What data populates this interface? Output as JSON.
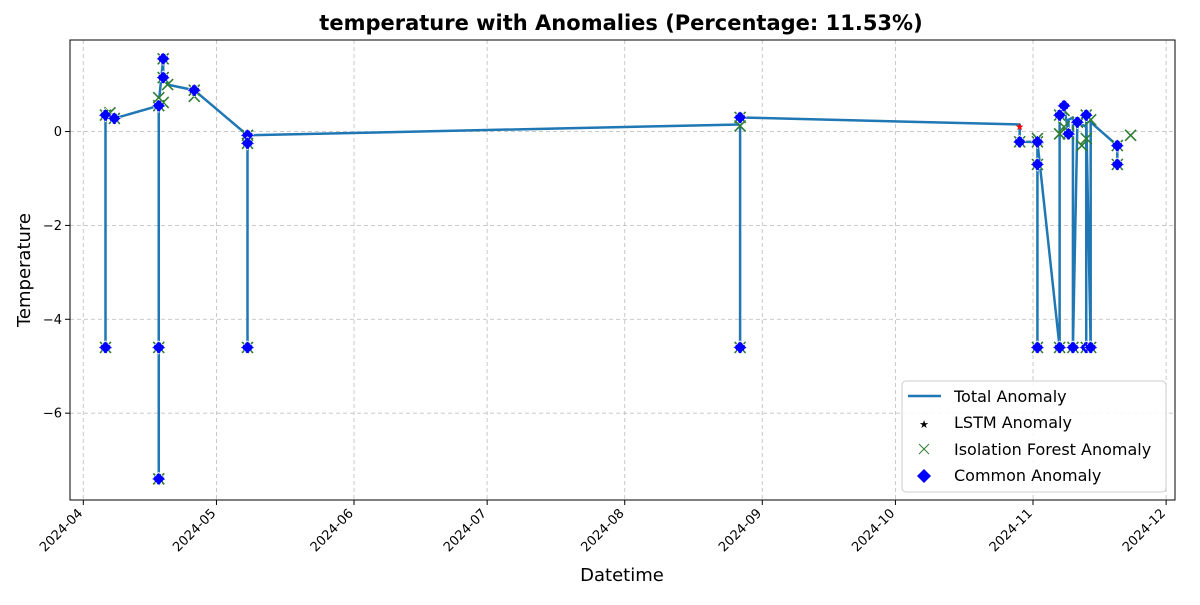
{
  "chart_data": {
    "type": "line",
    "title": "temperature with Anomalies (Percentage: 11.53%)",
    "xlabel": "Datetime",
    "ylabel": "Temperature",
    "x_range": [
      "2024-03-29",
      "2024-12-03"
    ],
    "ylim": [
      -7.85,
      1.95
    ],
    "grid": true,
    "legend_position": "lower-right",
    "x_ticks": [
      "2024-04",
      "2024-05",
      "2024-06",
      "2024-07",
      "2024-08",
      "2024-09",
      "2024-10",
      "2024-11",
      "2024-12"
    ],
    "y_ticks": [
      0,
      -2,
      -4,
      -6
    ],
    "y_tick_labels": [
      "0",
      "−2",
      "−4",
      "−6"
    ],
    "legend": [
      "Total Anomaly",
      "LSTM Anomaly",
      "Isolation Forest Anomaly",
      "Common Anomaly"
    ],
    "colors": {
      "total": "#1f77b4",
      "lstm": "#ff0000",
      "iforest": "#2e7d32",
      "common": "#0000ff"
    },
    "series": [
      {
        "name": "Total Anomaly",
        "points": [
          [
            "2024-04-06",
            0.35
          ],
          [
            "2024-04-06",
            -4.6
          ],
          [
            "2024-04-06",
            0.35
          ],
          [
            "2024-04-08",
            0.28
          ],
          [
            "2024-04-18",
            0.55
          ],
          [
            "2024-04-18",
            -4.6
          ],
          [
            "2024-04-18",
            -7.4
          ],
          [
            "2024-04-18",
            0.6
          ],
          [
            "2024-04-19",
            1.55
          ],
          [
            "2024-04-19",
            1.15
          ],
          [
            "2024-04-20",
            1.0
          ],
          [
            "2024-04-26",
            0.88
          ],
          [
            "2024-05-08",
            -0.08
          ],
          [
            "2024-05-08",
            -4.6
          ],
          [
            "2024-05-08",
            -0.25
          ],
          [
            "2024-05-08",
            -0.08
          ],
          [
            "2024-08-27",
            0.15
          ],
          [
            "2024-08-27",
            -4.6
          ],
          [
            "2024-08-27",
            0.3
          ],
          [
            "2024-10-29",
            0.15
          ],
          [
            "2024-10-29",
            -0.22
          ],
          [
            "2024-11-02",
            -0.22
          ],
          [
            "2024-11-02",
            -4.6
          ],
          [
            "2024-11-02",
            -0.7
          ],
          [
            "2024-11-02",
            -0.22
          ],
          [
            "2024-11-07",
            -4.6
          ],
          [
            "2024-11-07",
            0.35
          ],
          [
            "2024-11-08",
            0.55
          ],
          [
            "2024-11-09",
            -0.05
          ],
          [
            "2024-11-09",
            0.25
          ],
          [
            "2024-11-10",
            0.3
          ],
          [
            "2024-11-10",
            -4.6
          ],
          [
            "2024-11-11",
            0.2
          ],
          [
            "2024-11-13",
            0.1
          ],
          [
            "2024-11-13",
            -4.6
          ],
          [
            "2024-11-13",
            0.35
          ],
          [
            "2024-11-14",
            -4.6
          ],
          [
            "2024-11-14",
            0.2
          ],
          [
            "2024-11-20",
            -0.3
          ],
          [
            "2024-11-20",
            -0.7
          ],
          [
            "2024-11-20",
            -0.3
          ]
        ]
      },
      {
        "name": "LSTM Anomaly",
        "points": [
          [
            "2024-04-06",
            0.35
          ],
          [
            "2024-04-06",
            -4.6
          ],
          [
            "2024-04-08",
            0.28
          ],
          [
            "2024-04-18",
            0.55
          ],
          [
            "2024-04-18",
            -4.6
          ],
          [
            "2024-04-18",
            -7.4
          ],
          [
            "2024-04-19",
            1.55
          ],
          [
            "2024-04-19",
            1.15
          ],
          [
            "2024-04-26",
            0.88
          ],
          [
            "2024-05-08",
            -0.08
          ],
          [
            "2024-05-08",
            -4.6
          ],
          [
            "2024-05-08",
            -0.25
          ],
          [
            "2024-08-27",
            0.3
          ],
          [
            "2024-08-27",
            -4.6
          ],
          [
            "2024-10-29",
            0.1
          ],
          [
            "2024-10-29",
            -0.22
          ],
          [
            "2024-11-02",
            -0.22
          ],
          [
            "2024-11-02",
            -4.6
          ],
          [
            "2024-11-02",
            -0.7
          ],
          [
            "2024-11-07",
            -4.6
          ],
          [
            "2024-11-07",
            0.35
          ],
          [
            "2024-11-08",
            0.55
          ],
          [
            "2024-11-09",
            -0.05
          ],
          [
            "2024-11-10",
            -4.6
          ],
          [
            "2024-11-11",
            0.2
          ],
          [
            "2024-11-13",
            0.35
          ],
          [
            "2024-11-13",
            -4.6
          ],
          [
            "2024-11-14",
            -4.6
          ],
          [
            "2024-11-20",
            -0.3
          ],
          [
            "2024-11-20",
            -0.7
          ]
        ]
      },
      {
        "name": "Isolation Forest Anomaly",
        "points": [
          [
            "2024-04-06",
            0.35
          ],
          [
            "2024-04-06",
            -4.6
          ],
          [
            "2024-04-07",
            0.4
          ],
          [
            "2024-04-08",
            0.28
          ],
          [
            "2024-04-18",
            0.55
          ],
          [
            "2024-04-18",
            -4.6
          ],
          [
            "2024-04-18",
            -7.4
          ],
          [
            "2024-04-18",
            0.72
          ],
          [
            "2024-04-19",
            0.62
          ],
          [
            "2024-04-19",
            1.55
          ],
          [
            "2024-04-19",
            1.15
          ],
          [
            "2024-04-20",
            1.0
          ],
          [
            "2024-04-26",
            0.75
          ],
          [
            "2024-04-26",
            0.88
          ],
          [
            "2024-05-08",
            -0.08
          ],
          [
            "2024-05-08",
            -4.6
          ],
          [
            "2024-05-08",
            -0.25
          ],
          [
            "2024-08-27",
            0.3
          ],
          [
            "2024-08-27",
            0.12
          ],
          [
            "2024-08-27",
            -4.6
          ],
          [
            "2024-10-29",
            -0.22
          ],
          [
            "2024-11-02",
            -0.15
          ],
          [
            "2024-11-02",
            -0.22
          ],
          [
            "2024-11-02",
            -4.6
          ],
          [
            "2024-11-02",
            -0.7
          ],
          [
            "2024-11-07",
            -4.6
          ],
          [
            "2024-11-07",
            0.35
          ],
          [
            "2024-11-07",
            -0.05
          ],
          [
            "2024-11-08",
            0.45
          ],
          [
            "2024-11-08",
            0.1
          ],
          [
            "2024-11-09",
            -0.05
          ],
          [
            "2024-11-10",
            -4.6
          ],
          [
            "2024-11-11",
            0.2
          ],
          [
            "2024-11-12",
            -0.3
          ],
          [
            "2024-11-13",
            0.35
          ],
          [
            "2024-11-13",
            -0.15
          ],
          [
            "2024-11-13",
            -4.6
          ],
          [
            "2024-11-14",
            -4.6
          ],
          [
            "2024-11-14",
            0.25
          ],
          [
            "2024-11-20",
            -0.3
          ],
          [
            "2024-11-20",
            -0.7
          ],
          [
            "2024-11-23",
            -0.08
          ]
        ]
      },
      {
        "name": "Common Anomaly",
        "points": [
          [
            "2024-04-06",
            0.35
          ],
          [
            "2024-04-06",
            -4.6
          ],
          [
            "2024-04-08",
            0.28
          ],
          [
            "2024-04-18",
            0.55
          ],
          [
            "2024-04-18",
            -4.6
          ],
          [
            "2024-04-18",
            -7.4
          ],
          [
            "2024-04-19",
            1.55
          ],
          [
            "2024-04-19",
            1.15
          ],
          [
            "2024-04-26",
            0.88
          ],
          [
            "2024-05-08",
            -0.08
          ],
          [
            "2024-05-08",
            -4.6
          ],
          [
            "2024-05-08",
            -0.25
          ],
          [
            "2024-08-27",
            0.3
          ],
          [
            "2024-08-27",
            -4.6
          ],
          [
            "2024-10-29",
            -0.22
          ],
          [
            "2024-11-02",
            -0.22
          ],
          [
            "2024-11-02",
            -4.6
          ],
          [
            "2024-11-02",
            -0.7
          ],
          [
            "2024-11-07",
            -4.6
          ],
          [
            "2024-11-07",
            0.35
          ],
          [
            "2024-11-08",
            0.55
          ],
          [
            "2024-11-09",
            -0.05
          ],
          [
            "2024-11-10",
            -4.6
          ],
          [
            "2024-11-11",
            0.2
          ],
          [
            "2024-11-13",
            0.35
          ],
          [
            "2024-11-13",
            -4.6
          ],
          [
            "2024-11-14",
            -4.6
          ],
          [
            "2024-11-20",
            -0.3
          ],
          [
            "2024-11-20",
            -0.7
          ]
        ]
      }
    ]
  }
}
